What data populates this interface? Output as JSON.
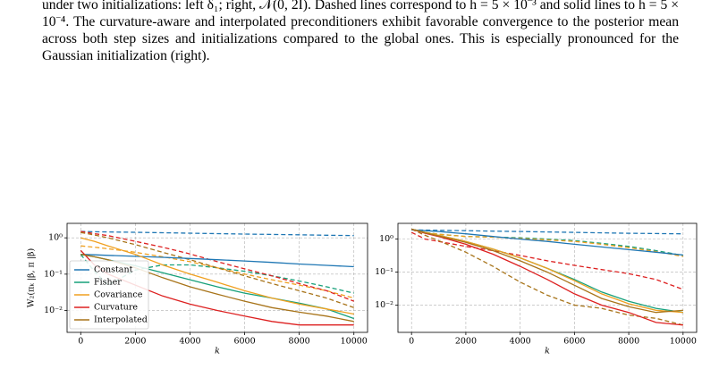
{
  "caption": "under two initializations: left δ₁; right, 𝒩(0, 2I). Dashed lines correspond to h = 5 × 10⁻³ and solid lines to h = 5 × 10⁻⁴. The curvature-aware and interpolated preconditioners exhibit favorable convergence to the posterior mean across both step sizes and initializations compared to the global ones. This is especially pronounced for the Gaussian initialization (right).",
  "chart_data": [
    {
      "type": "line",
      "ylabel": "W₂(πₖ |β, π |β)",
      "xlabel": "k",
      "log_y": true,
      "grid": true,
      "legend": "lower left",
      "x": [
        0,
        500,
        1000,
        2000,
        3000,
        4000,
        5000,
        6000,
        7000,
        8000,
        9000,
        10000
      ],
      "xlim": [
        -500,
        10500
      ],
      "xticks": [
        0,
        2000,
        4000,
        6000,
        8000,
        10000
      ],
      "ylim": [
        0.0025,
        2.5
      ],
      "yticks": [
        {
          "value": 1,
          "label": "10⁰"
        },
        {
          "value": 0.1,
          "label": "10⁻¹"
        },
        {
          "value": 0.01,
          "label": "10⁻²"
        }
      ],
      "series": [
        {
          "name": "Constant",
          "color": "#1f77b4",
          "dashed": [
            1.5,
            1.47,
            1.45,
            1.42,
            1.38,
            1.34,
            1.3,
            1.27,
            1.24,
            1.21,
            1.18,
            1.15
          ],
          "solid": [
            0.35,
            0.34,
            0.33,
            0.31,
            0.29,
            0.27,
            0.25,
            0.23,
            0.21,
            0.19,
            0.175,
            0.16
          ]
        },
        {
          "name": "Fisher",
          "color": "#17a07a",
          "dashed": [
            0.35,
            0.12,
            0.05,
            0.13,
            0.18,
            0.18,
            0.15,
            0.12,
            0.09,
            0.065,
            0.045,
            0.03
          ],
          "solid": [
            0.35,
            0.3,
            0.25,
            0.17,
            0.11,
            0.07,
            0.045,
            0.03,
            0.022,
            0.016,
            0.011,
            0.006
          ]
        },
        {
          "name": "Covariance",
          "color": "#f0a020",
          "dashed": [
            0.6,
            0.55,
            0.5,
            0.4,
            0.3,
            0.22,
            0.15,
            0.1,
            0.07,
            0.05,
            0.035,
            0.022
          ],
          "solid": [
            1.0,
            0.8,
            0.6,
            0.35,
            0.18,
            0.1,
            0.06,
            0.035,
            0.022,
            0.015,
            0.011,
            0.008
          ]
        },
        {
          "name": "Curvature",
          "color": "#dd2020",
          "dashed": [
            1.5,
            1.3,
            1.15,
            0.8,
            0.55,
            0.36,
            0.22,
            0.14,
            0.09,
            0.055,
            0.035,
            0.018
          ],
          "solid": [
            0.45,
            0.18,
            0.1,
            0.05,
            0.025,
            0.015,
            0.01,
            0.007,
            0.005,
            0.004,
            0.004,
            0.004
          ]
        },
        {
          "name": "Interpolated",
          "color": "#a8741a",
          "dashed": [
            1.4,
            1.2,
            1.0,
            0.65,
            0.4,
            0.25,
            0.15,
            0.09,
            0.055,
            0.035,
            0.022,
            0.012
          ],
          "solid": [
            0.35,
            0.3,
            0.25,
            0.15,
            0.08,
            0.045,
            0.028,
            0.018,
            0.012,
            0.009,
            0.007,
            0.005
          ]
        }
      ]
    },
    {
      "type": "line",
      "xlabel": "k",
      "log_y": true,
      "grid": true,
      "x": [
        0,
        500,
        1000,
        2000,
        3000,
        4000,
        5000,
        6000,
        7000,
        8000,
        9000,
        10000
      ],
      "xlim": [
        -500,
        10500
      ],
      "xticks": [
        0,
        2000,
        4000,
        6000,
        8000,
        10000
      ],
      "ylim": [
        0.0015,
        3
      ],
      "yticks": [
        {
          "value": 1,
          "label": "10⁰"
        },
        {
          "value": 0.1,
          "label": "10⁻¹"
        },
        {
          "value": 0.01,
          "label": "10⁻²"
        }
      ],
      "series": [
        {
          "color": "#1f77b4",
          "dashed": [
            1.9,
            1.88,
            1.85,
            1.8,
            1.75,
            1.7,
            1.65,
            1.6,
            1.55,
            1.5,
            1.47,
            1.45
          ],
          "solid": [
            1.9,
            1.8,
            1.7,
            1.45,
            1.2,
            1.0,
            0.85,
            0.7,
            0.58,
            0.48,
            0.4,
            0.33
          ]
        },
        {
          "color": "#17a07a",
          "dashed": [
            2.0,
            1.6,
            1.4,
            1.2,
            1.15,
            1.1,
            1.0,
            0.9,
            0.75,
            0.6,
            0.45,
            0.32
          ],
          "solid": [
            2.0,
            1.6,
            1.3,
            0.85,
            0.5,
            0.27,
            0.13,
            0.06,
            0.025,
            0.013,
            0.008,
            0.006
          ]
        },
        {
          "color": "#f0a020",
          "dashed": [
            2.0,
            1.6,
            1.4,
            1.2,
            1.15,
            1.05,
            0.95,
            0.85,
            0.7,
            0.55,
            0.42,
            0.3
          ],
          "solid": [
            2.0,
            1.6,
            1.3,
            0.85,
            0.5,
            0.27,
            0.13,
            0.055,
            0.022,
            0.011,
            0.007,
            0.006
          ]
        },
        {
          "color": "#dd2020",
          "dashed": [
            1.6,
            1.0,
            0.85,
            0.6,
            0.45,
            0.32,
            0.22,
            0.16,
            0.12,
            0.09,
            0.06,
            0.03
          ],
          "solid": [
            2.0,
            1.5,
            1.2,
            0.7,
            0.35,
            0.15,
            0.06,
            0.022,
            0.01,
            0.006,
            0.003,
            0.0025
          ]
        },
        {
          "color": "#a8741a",
          "dashed": [
            2.0,
            1.3,
            0.9,
            0.4,
            0.15,
            0.05,
            0.02,
            0.01,
            0.008,
            0.005,
            0.004,
            0.0025
          ],
          "solid": [
            2.0,
            1.55,
            1.25,
            0.8,
            0.45,
            0.22,
            0.1,
            0.04,
            0.016,
            0.009,
            0.006,
            0.007
          ]
        }
      ]
    }
  ]
}
